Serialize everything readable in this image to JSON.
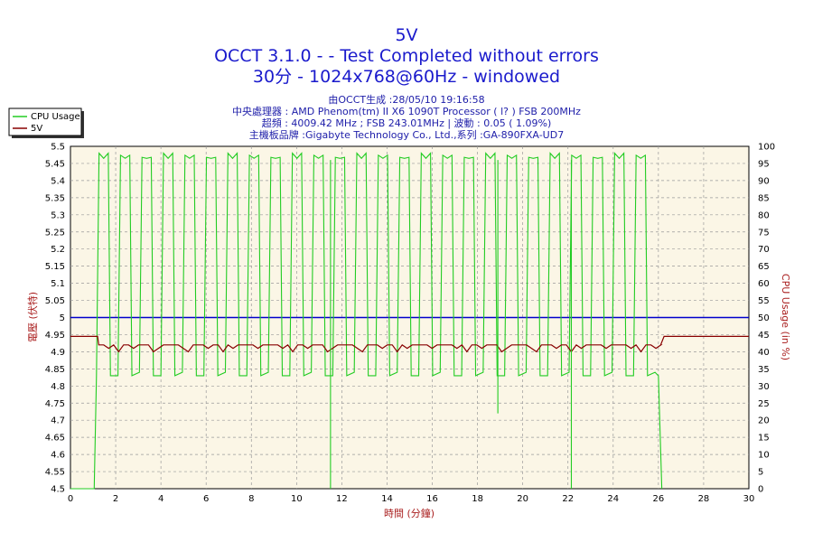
{
  "chart_data": {
    "type": "line",
    "title": "5V",
    "subtitle1": "OCCT 3.1.0 -  - Test Completed without errors",
    "subtitle2": "30分 - 1024x768@60Hz - windowed",
    "info_lines": [
      "由OCCT生成 :28/05/10 19:16:58",
      "中央處理器 : AMD Phenom(tm) II X6 1090T Processor (   l?  ) FSB 200MHz",
      "超頻 : 4009.42 MHz ; FSB 243.01MHz | 波動 : 0.05 ( 1.09%)",
      "主機板品牌 :Gigabyte Technology Co., Ltd.,系列 :GA-890FXA-UD7"
    ],
    "xlabel": "時間 (分鐘)",
    "ylabel": "電壓 (伏特)",
    "y2label": "CPU Usage (in %)",
    "xlim": [
      0,
      30
    ],
    "ylim": [
      4.5,
      5.5
    ],
    "y2lim": [
      0,
      100
    ],
    "x_ticks": [
      "0",
      "2",
      "4",
      "6",
      "8",
      "10",
      "12",
      "14",
      "16",
      "18",
      "20",
      "22",
      "24",
      "26",
      "28",
      "30"
    ],
    "y_ticks": [
      "4.5",
      "4.55",
      "4.6",
      "4.65",
      "4.7",
      "4.75",
      "4.8",
      "4.85",
      "4.9",
      "4.95",
      "5",
      "5.05",
      "5.1",
      "5.15",
      "5.2",
      "5.25",
      "5.3",
      "5.35",
      "5.4",
      "5.45",
      "5.5"
    ],
    "y2_ticks": [
      "0",
      "5",
      "10",
      "15",
      "20",
      "25",
      "30",
      "35",
      "40",
      "45",
      "50",
      "55",
      "60",
      "65",
      "70",
      "75",
      "80",
      "85",
      "90",
      "95",
      "100"
    ],
    "grid": true,
    "legend_position": "top-left",
    "reference_value": 5.0,
    "test_start_min": 1.05,
    "test_end_min": 26.0,
    "series": [
      {
        "name": "CPU Usage",
        "color": "#22cc22",
        "axis": "right",
        "idle_value": 0,
        "high_value": 98,
        "low_value": 33,
        "cycle_period_min": 0.95,
        "spikes_down": [
          [
            11.5,
            0
          ],
          [
            22.15,
            0
          ],
          [
            18.9,
            22
          ]
        ]
      },
      {
        "name": "5V",
        "color": "#880000",
        "axis": "left",
        "idle_value": 4.945,
        "load_values": [
          4.92,
          4.91,
          4.9
        ],
        "load_start_min": 1.2,
        "load_end_min": 26.1
      }
    ],
    "colors": {
      "plot_background": "#fbf6e6",
      "grid": "#999999",
      "reference_line": "#0000cc",
      "title": "#1a1acc",
      "axis_label": "#aa2020"
    }
  }
}
